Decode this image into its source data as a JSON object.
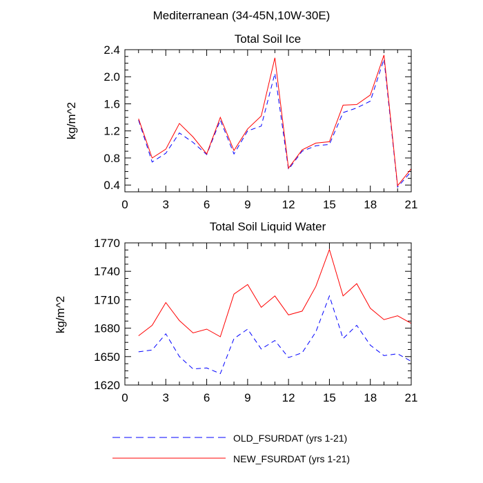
{
  "figure_title": "Mediterranean (34-45N,10W-30E)",
  "legend": {
    "entries": [
      {
        "label": "OLD_FSURDAT (yrs 1-21)",
        "color": "#0000ff",
        "dash": "dashed"
      },
      {
        "label": "NEW_FSURDAT (yrs 1-21)",
        "color": "#ff0000",
        "dash": "solid"
      }
    ]
  },
  "chart_data": [
    {
      "type": "line",
      "title": "Total Soil Ice",
      "xlabel": "",
      "ylabel": "kg/m^2",
      "xlim": [
        0,
        21
      ],
      "ylim": [
        0.3,
        2.4
      ],
      "xticks": [
        0,
        3,
        6,
        9,
        12,
        15,
        18,
        21
      ],
      "yticks": [
        0.4,
        0.8,
        1.2,
        1.6,
        2.0,
        2.4
      ],
      "ytick_labels": [
        "0.4",
        "0.8",
        "1.2",
        "1.6",
        "2.0",
        "2.4"
      ],
      "x": [
        1,
        2,
        3,
        4,
        5,
        6,
        7,
        8,
        9,
        10,
        11,
        12,
        13,
        14,
        15,
        16,
        17,
        18,
        19,
        20,
        21
      ],
      "series": [
        {
          "name": "OLD_FSURDAT (yrs 1-21)",
          "color": "#0000ff",
          "dash": "dashed",
          "values": [
            1.36,
            0.74,
            0.87,
            1.17,
            1.03,
            0.85,
            1.36,
            0.86,
            1.2,
            1.27,
            2.05,
            0.63,
            0.9,
            0.98,
            1.0,
            1.47,
            1.54,
            1.64,
            2.26,
            0.37,
            0.6
          ]
        },
        {
          "name": "NEW_FSURDAT (yrs 1-21)",
          "color": "#ff0000",
          "dash": "solid",
          "values": [
            1.38,
            0.8,
            0.93,
            1.31,
            1.11,
            0.86,
            1.4,
            0.91,
            1.23,
            1.42,
            2.28,
            0.65,
            0.92,
            1.02,
            1.04,
            1.58,
            1.59,
            1.73,
            2.32,
            0.39,
            0.64
          ]
        }
      ]
    },
    {
      "type": "line",
      "title": "Total Soil Liquid Water",
      "xlabel": "",
      "ylabel": "kg/m^2",
      "xlim": [
        0,
        21
      ],
      "ylim": [
        1620,
        1770
      ],
      "xticks": [
        0,
        3,
        6,
        9,
        12,
        15,
        18,
        21
      ],
      "yticks": [
        1620,
        1650,
        1680,
        1710,
        1740,
        1770
      ],
      "ytick_labels": [
        "1620",
        "1650",
        "1680",
        "1710",
        "1740",
        "1770"
      ],
      "x": [
        1,
        2,
        3,
        4,
        5,
        6,
        7,
        8,
        9,
        10,
        11,
        12,
        13,
        14,
        15,
        16,
        17,
        18,
        19,
        20,
        21
      ],
      "series": [
        {
          "name": "OLD_FSURDAT (yrs 1-21)",
          "color": "#0000ff",
          "dash": "dashed",
          "values": [
            1655,
            1657,
            1674,
            1650,
            1637,
            1638,
            1632,
            1669,
            1679,
            1658,
            1667,
            1649,
            1654,
            1676,
            1714,
            1669,
            1683,
            1662,
            1651,
            1653,
            1645
          ]
        },
        {
          "name": "NEW_FSURDAT (yrs 1-21)",
          "color": "#ff0000",
          "dash": "solid",
          "values": [
            1672,
            1683,
            1707,
            1688,
            1675,
            1679,
            1671,
            1716,
            1726,
            1702,
            1714,
            1694,
            1698,
            1724,
            1763,
            1714,
            1727,
            1701,
            1689,
            1693,
            1685
          ]
        }
      ]
    }
  ]
}
